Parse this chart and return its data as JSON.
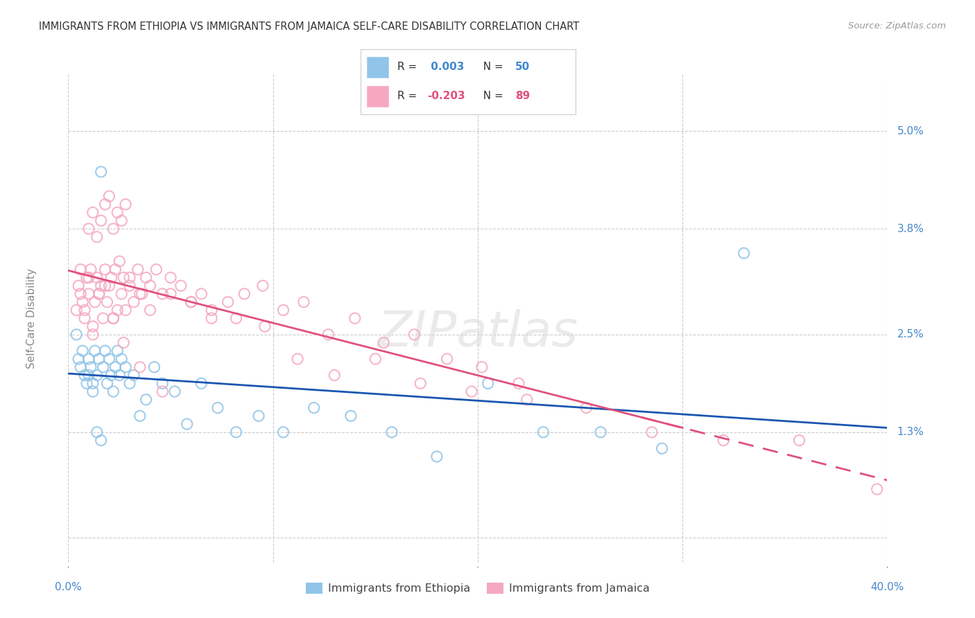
{
  "title": "IMMIGRANTS FROM ETHIOPIA VS IMMIGRANTS FROM JAMAICA SELF-CARE DISABILITY CORRELATION CHART",
  "source": "Source: ZipAtlas.com",
  "ylabel": "Self-Care Disability",
  "xlim": [
    0.0,
    0.4
  ],
  "ylim": [
    -0.003,
    0.057
  ],
  "yticks": [
    0.0,
    0.013,
    0.025,
    0.038,
    0.05
  ],
  "ytick_labels": [
    "",
    "1.3%",
    "2.5%",
    "3.8%",
    "5.0%"
  ],
  "xticks": [
    0.0,
    0.1,
    0.2,
    0.3,
    0.4
  ],
  "xtick_labels": [
    "0.0%",
    "",
    "",
    "",
    "40.0%"
  ],
  "legend_labels": [
    "Immigrants from Ethiopia",
    "Immigrants from Jamaica"
  ],
  "r_ethiopia": 0.003,
  "n_ethiopia": 50,
  "r_jamaica": -0.203,
  "n_jamaica": 89,
  "color_ethiopia": "#90C4E8",
  "color_jamaica": "#F5A8C0",
  "line_color_ethiopia": "#1A56B0",
  "line_color_jamaica": "#E0507A",
  "background_color": "#FFFFFF",
  "grid_color": "#CCCCCC",
  "title_color": "#333333",
  "axis_label_color": "#4488CC",
  "ethiopia_x": [
    0.004,
    0.005,
    0.006,
    0.007,
    0.008,
    0.009,
    0.01,
    0.011,
    0.012,
    0.013,
    0.014,
    0.015,
    0.016,
    0.017,
    0.018,
    0.019,
    0.02,
    0.021,
    0.022,
    0.023,
    0.024,
    0.025,
    0.026,
    0.028,
    0.03,
    0.032,
    0.035,
    0.038,
    0.042,
    0.046,
    0.052,
    0.058,
    0.065,
    0.073,
    0.082,
    0.093,
    0.105,
    0.12,
    0.138,
    0.158,
    0.18,
    0.205,
    0.232,
    0.26,
    0.29,
    0.01,
    0.012,
    0.014,
    0.016,
    0.33
  ],
  "ethiopia_y": [
    0.025,
    0.022,
    0.021,
    0.023,
    0.02,
    0.019,
    0.022,
    0.021,
    0.019,
    0.023,
    0.02,
    0.022,
    0.045,
    0.021,
    0.023,
    0.019,
    0.022,
    0.02,
    0.018,
    0.021,
    0.023,
    0.02,
    0.022,
    0.021,
    0.019,
    0.02,
    0.015,
    0.017,
    0.021,
    0.019,
    0.018,
    0.014,
    0.019,
    0.016,
    0.013,
    0.015,
    0.013,
    0.016,
    0.015,
    0.013,
    0.01,
    0.019,
    0.013,
    0.013,
    0.011,
    0.02,
    0.018,
    0.013,
    0.012,
    0.035
  ],
  "jamaica_x": [
    0.004,
    0.005,
    0.006,
    0.007,
    0.008,
    0.009,
    0.01,
    0.011,
    0.012,
    0.013,
    0.014,
    0.015,
    0.016,
    0.017,
    0.018,
    0.019,
    0.02,
    0.021,
    0.022,
    0.023,
    0.024,
    0.025,
    0.026,
    0.027,
    0.028,
    0.03,
    0.032,
    0.034,
    0.036,
    0.038,
    0.04,
    0.043,
    0.046,
    0.05,
    0.055,
    0.06,
    0.065,
    0.07,
    0.078,
    0.086,
    0.095,
    0.105,
    0.115,
    0.127,
    0.14,
    0.154,
    0.169,
    0.185,
    0.202,
    0.22,
    0.01,
    0.012,
    0.014,
    0.016,
    0.018,
    0.02,
    0.022,
    0.024,
    0.026,
    0.028,
    0.03,
    0.035,
    0.04,
    0.05,
    0.06,
    0.07,
    0.082,
    0.096,
    0.112,
    0.13,
    0.15,
    0.172,
    0.197,
    0.224,
    0.253,
    0.285,
    0.32,
    0.357,
    0.395,
    0.006,
    0.008,
    0.01,
    0.012,
    0.015,
    0.018,
    0.022,
    0.027,
    0.035,
    0.046
  ],
  "jamaica_y": [
    0.028,
    0.031,
    0.033,
    0.029,
    0.027,
    0.032,
    0.03,
    0.033,
    0.025,
    0.029,
    0.032,
    0.03,
    0.031,
    0.027,
    0.033,
    0.029,
    0.031,
    0.032,
    0.027,
    0.033,
    0.028,
    0.034,
    0.03,
    0.032,
    0.028,
    0.031,
    0.029,
    0.033,
    0.03,
    0.032,
    0.031,
    0.033,
    0.03,
    0.032,
    0.031,
    0.029,
    0.03,
    0.028,
    0.029,
    0.03,
    0.031,
    0.028,
    0.029,
    0.025,
    0.027,
    0.024,
    0.025,
    0.022,
    0.021,
    0.019,
    0.038,
    0.04,
    0.037,
    0.039,
    0.041,
    0.042,
    0.038,
    0.04,
    0.039,
    0.041,
    0.032,
    0.03,
    0.028,
    0.03,
    0.029,
    0.027,
    0.027,
    0.026,
    0.022,
    0.02,
    0.022,
    0.019,
    0.018,
    0.017,
    0.016,
    0.013,
    0.012,
    0.012,
    0.006,
    0.03,
    0.028,
    0.032,
    0.026,
    0.03,
    0.031,
    0.027,
    0.024,
    0.021,
    0.018
  ]
}
